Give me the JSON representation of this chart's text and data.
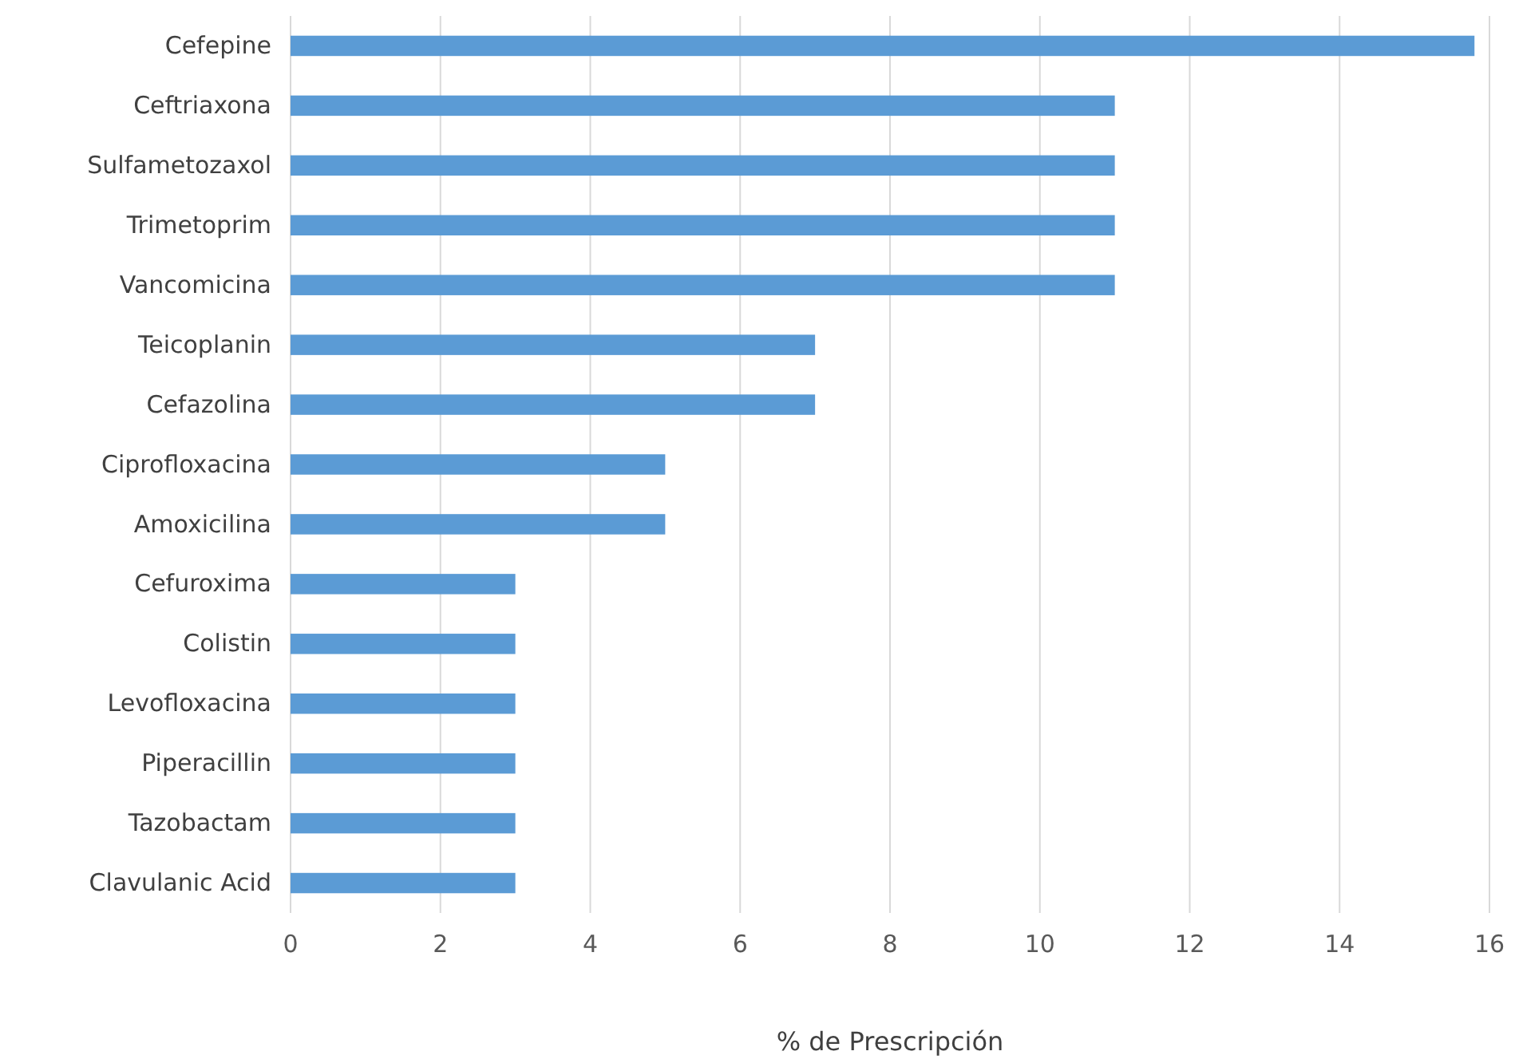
{
  "chart_data": {
    "type": "bar",
    "orientation": "horizontal",
    "xlabel": "% de Prescripción",
    "categories": [
      "Cefepine",
      "Ceftriaxona",
      "Sulfametozaxol",
      "Trimetoprim",
      "Vancomicina",
      "Teicoplanin",
      "Cefazolina",
      "Ciprofloxacina",
      "Amoxicilina",
      "Cefuroxima",
      "Colistin",
      "Levofloxacina",
      "Piperacillin",
      "Tazobactam",
      "Clavulanic Acid"
    ],
    "values": [
      15.8,
      11,
      11,
      11,
      11,
      7,
      7,
      5,
      5,
      3,
      3,
      3,
      3,
      3,
      3
    ],
    "color": "#5b9bd5",
    "xlim": [
      0,
      16
    ],
    "xticks": [
      0,
      2,
      4,
      6,
      8,
      10,
      12,
      14,
      16
    ],
    "grid": "x"
  }
}
